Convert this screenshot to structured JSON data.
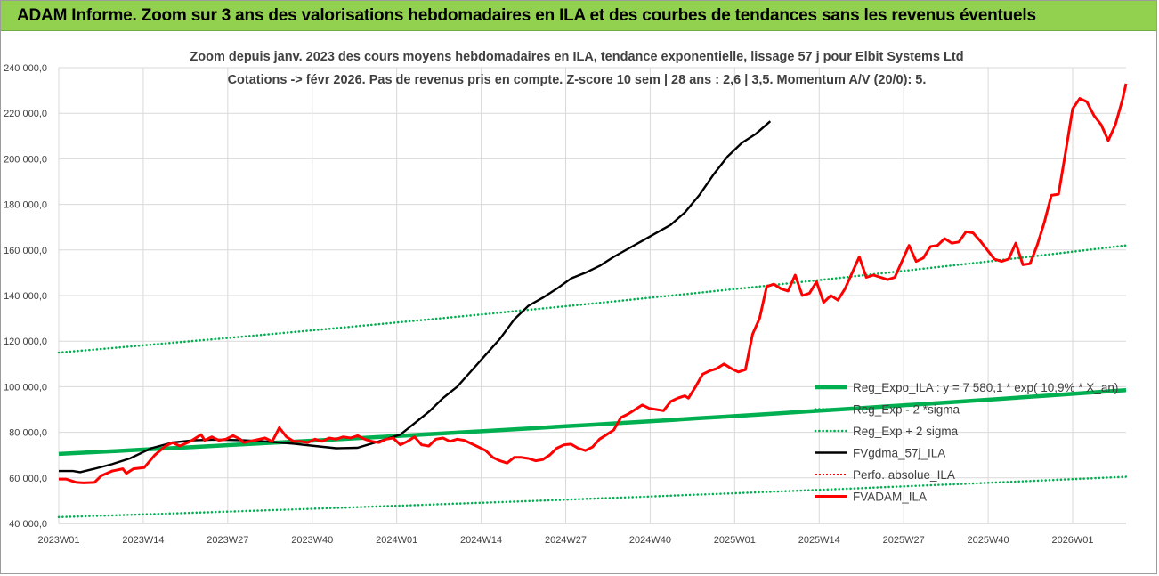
{
  "header": {
    "title": "ADAM Informe. Zoom sur 3 ans des valorisations hebdomadaires en ILA et des courbes de tendances sans les revenus éventuels"
  },
  "colors": {
    "header_bg": "#92d050",
    "reg_expo": "#00b050",
    "sigma": "#00b050",
    "smooth": "#000000",
    "perf": "#ff0000",
    "price": "#ff0000",
    "grid": "#d9d9d9"
  },
  "chart_data": {
    "type": "line",
    "title_line1": "Zoom depuis janv. 2023 des cours moyens hebdomadaires en ILA, tendance exponentielle, lissage 57 j pour Elbit Systems Ltd",
    "title_line2": "Cotations -> févr 2026.  Pas de revenus pris en compte. Z-score 10 sem | 28 ans : 2,6 | 3,5. Momentum A/V (20/0): 5.",
    "xlabel": "",
    "ylabel": "",
    "ylim": [
      40000,
      240000
    ],
    "yticks": [
      40000,
      60000,
      80000,
      100000,
      120000,
      140000,
      160000,
      180000,
      200000,
      220000,
      240000
    ],
    "ytick_labels": [
      "40 000,0",
      "60 000,0",
      "80 000,0",
      "100 000,0",
      "120 000,0",
      "140 000,0",
      "160 000,0",
      "180 000,0",
      "200 000,0",
      "220 000,0",
      "240 000,0"
    ],
    "x_count": 163,
    "xtick_index": [
      0,
      13,
      26,
      39,
      52,
      65,
      78,
      91,
      104,
      117,
      130,
      143,
      156
    ],
    "xtick_labels": [
      "2023W01",
      "2023W14",
      "2023W27",
      "2023W40",
      "2024W01",
      "2024W14",
      "2024W27",
      "2024W40",
      "2025W01",
      "2025W14",
      "2025W27",
      "2025W40",
      "2026W01"
    ],
    "grid": true,
    "legend_position": "right-bottom",
    "legend": [
      {
        "key": "reg_expo",
        "label": "Reg_Expo_ILA : y = 7 580,1 * exp( 10,9% * X_an)",
        "style": "thick"
      },
      {
        "key": "minus2",
        "label": "Reg_Exp - 2 *sigma",
        "style": "dotted"
      },
      {
        "key": "plus2",
        "label": "Reg_Exp + 2 sigma",
        "style": "dotted"
      },
      {
        "key": "smooth",
        "label": "FVgdma_57j_ILA",
        "style": "solid"
      },
      {
        "key": "perf",
        "label": "Perfo. absolue_ILA",
        "style": "dotted-red"
      },
      {
        "key": "price",
        "label": "FVADAM_ILA",
        "style": "thick-red"
      }
    ],
    "series": [
      {
        "name": "Reg_Expo_ILA",
        "start": 70500,
        "end": 98500
      },
      {
        "name": "Reg_Exp - 2 *sigma",
        "start": 42800,
        "end": 60500
      },
      {
        "name": "Reg_Exp + 2 sigma",
        "start": 115000,
        "end": 162000
      },
      {
        "name": "FVgdma_57j_ILA",
        "points": [
          [
            0,
            63000
          ],
          [
            4,
            63000
          ],
          [
            6,
            62500
          ],
          [
            10,
            64000
          ],
          [
            15,
            66000
          ],
          [
            20,
            68500
          ],
          [
            26,
            73000
          ],
          [
            32,
            75500
          ],
          [
            38,
            76500
          ],
          [
            44,
            76800
          ],
          [
            52,
            76500
          ],
          [
            58,
            76000
          ],
          [
            66,
            75000
          ],
          [
            72,
            74000
          ],
          [
            78,
            73000
          ],
          [
            84,
            73200
          ],
          [
            90,
            76000
          ],
          [
            96,
            79000
          ],
          [
            100,
            84000
          ],
          [
            104,
            89000
          ],
          [
            108,
            95000
          ],
          [
            112,
            100000
          ],
          [
            116,
            107000
          ],
          [
            120,
            114000
          ],
          [
            124,
            121000
          ],
          [
            128,
            129500
          ],
          [
            132,
            135500
          ],
          [
            136,
            139000
          ],
          [
            140,
            143000
          ],
          [
            144,
            147500
          ],
          [
            148,
            150000
          ],
          [
            152,
            153000
          ],
          [
            156,
            157000
          ],
          [
            160,
            160500
          ],
          [
            164,
            164000
          ],
          [
            168,
            167500
          ],
          [
            172,
            171000
          ],
          [
            176,
            176500
          ],
          [
            180,
            184000
          ],
          [
            184,
            193000
          ],
          [
            188,
            201000
          ],
          [
            192,
            207000
          ],
          [
            196,
            211000
          ],
          [
            200,
            216500
          ]
        ]
      },
      {
        "name": "FVADAM_ILA",
        "points": [
          [
            0,
            59500
          ],
          [
            2,
            59500
          ],
          [
            5,
            58000
          ],
          [
            7,
            57800
          ],
          [
            10,
            58000
          ],
          [
            12,
            61000
          ],
          [
            15,
            63000
          ],
          [
            18,
            64000
          ],
          [
            19,
            62000
          ],
          [
            21,
            64000
          ],
          [
            24,
            64500
          ],
          [
            27,
            70000
          ],
          [
            30,
            74000
          ],
          [
            32,
            75500
          ],
          [
            34,
            74000
          ],
          [
            37,
            76000
          ],
          [
            40,
            79000
          ],
          [
            41,
            76500
          ],
          [
            43,
            78000
          ],
          [
            45,
            76500
          ],
          [
            47,
            77000
          ],
          [
            49,
            78500
          ],
          [
            51,
            77000
          ],
          [
            52,
            75500
          ],
          [
            55,
            76500
          ],
          [
            58,
            77500
          ],
          [
            60,
            76000
          ],
          [
            62,
            82000
          ],
          [
            64,
            78000
          ],
          [
            66,
            76000
          ],
          [
            68,
            76000
          ],
          [
            70,
            75500
          ],
          [
            72,
            77000
          ],
          [
            74,
            76000
          ],
          [
            76,
            77500
          ],
          [
            78,
            77000
          ],
          [
            80,
            78000
          ],
          [
            82,
            77500
          ],
          [
            84,
            78500
          ],
          [
            86,
            77000
          ],
          [
            88,
            76000
          ],
          [
            90,
            75500
          ],
          [
            92,
            77000
          ],
          [
            94,
            77500
          ],
          [
            96,
            74500
          ],
          [
            98,
            76000
          ],
          [
            100,
            78000
          ],
          [
            102,
            74500
          ],
          [
            104,
            74000
          ],
          [
            106,
            77000
          ],
          [
            108,
            77500
          ],
          [
            110,
            76000
          ],
          [
            112,
            77000
          ],
          [
            114,
            76500
          ],
          [
            116,
            75000
          ],
          [
            118,
            73500
          ],
          [
            120,
            72000
          ],
          [
            122,
            69000
          ],
          [
            124,
            67500
          ],
          [
            126,
            66500
          ],
          [
            128,
            69000
          ],
          [
            130,
            69000
          ],
          [
            132,
            68500
          ],
          [
            134,
            67500
          ],
          [
            136,
            68000
          ],
          [
            138,
            70000
          ],
          [
            140,
            73000
          ],
          [
            142,
            74500
          ],
          [
            144,
            74800
          ],
          [
            146,
            73000
          ],
          [
            148,
            72000
          ],
          [
            150,
            73500
          ],
          [
            152,
            77000
          ],
          [
            154,
            79000
          ],
          [
            156,
            81000
          ],
          [
            158,
            86500
          ],
          [
            160,
            88000
          ],
          [
            162,
            90000
          ],
          [
            164,
            92000
          ],
          [
            166,
            90500
          ],
          [
            168,
            90000
          ],
          [
            170,
            89500
          ],
          [
            172,
            93500
          ],
          [
            174,
            95000
          ],
          [
            176,
            96000
          ],
          [
            177,
            95000
          ],
          [
            179,
            100000
          ],
          [
            181,
            105500
          ],
          [
            183,
            107000
          ],
          [
            185,
            108000
          ],
          [
            187,
            110000
          ],
          [
            189,
            108000
          ],
          [
            191,
            106500
          ],
          [
            193,
            107500
          ],
          [
            195,
            123000
          ],
          [
            197,
            130000
          ],
          [
            199,
            144000
          ],
          [
            201,
            145000
          ],
          [
            203,
            143000
          ],
          [
            205,
            142000
          ],
          [
            207,
            149000
          ],
          [
            209,
            140000
          ],
          [
            211,
            141000
          ],
          [
            213,
            146000
          ],
          [
            215,
            137000
          ],
          [
            217,
            140000
          ],
          [
            219,
            138000
          ],
          [
            221,
            143000
          ],
          [
            223,
            150000
          ],
          [
            225,
            157000
          ],
          [
            227,
            148000
          ],
          [
            229,
            149000
          ],
          [
            231,
            148000
          ],
          [
            233,
            147000
          ],
          [
            235,
            148000
          ],
          [
            237,
            155000
          ],
          [
            239,
            162000
          ],
          [
            241,
            155000
          ],
          [
            243,
            156500
          ],
          [
            245,
            161500
          ],
          [
            247,
            162000
          ],
          [
            249,
            165000
          ],
          [
            251,
            163000
          ],
          [
            253,
            163500
          ],
          [
            255,
            168000
          ],
          [
            257,
            167500
          ],
          [
            259,
            164000
          ],
          [
            261,
            160000
          ],
          [
            263,
            156000
          ],
          [
            265,
            155000
          ],
          [
            267,
            156000
          ],
          [
            269,
            163000
          ],
          [
            271,
            153500
          ],
          [
            273,
            154000
          ],
          [
            275,
            162000
          ],
          [
            277,
            172000
          ],
          [
            279,
            184000
          ],
          [
            281,
            184500
          ],
          [
            283,
            203000
          ],
          [
            285,
            222000
          ],
          [
            287,
            226500
          ],
          [
            289,
            225000
          ],
          [
            291,
            219000
          ],
          [
            293,
            215000
          ],
          [
            295,
            208000
          ],
          [
            297,
            215000
          ],
          [
            299,
            226000
          ],
          [
            300,
            233000
          ]
        ]
      }
    ]
  }
}
